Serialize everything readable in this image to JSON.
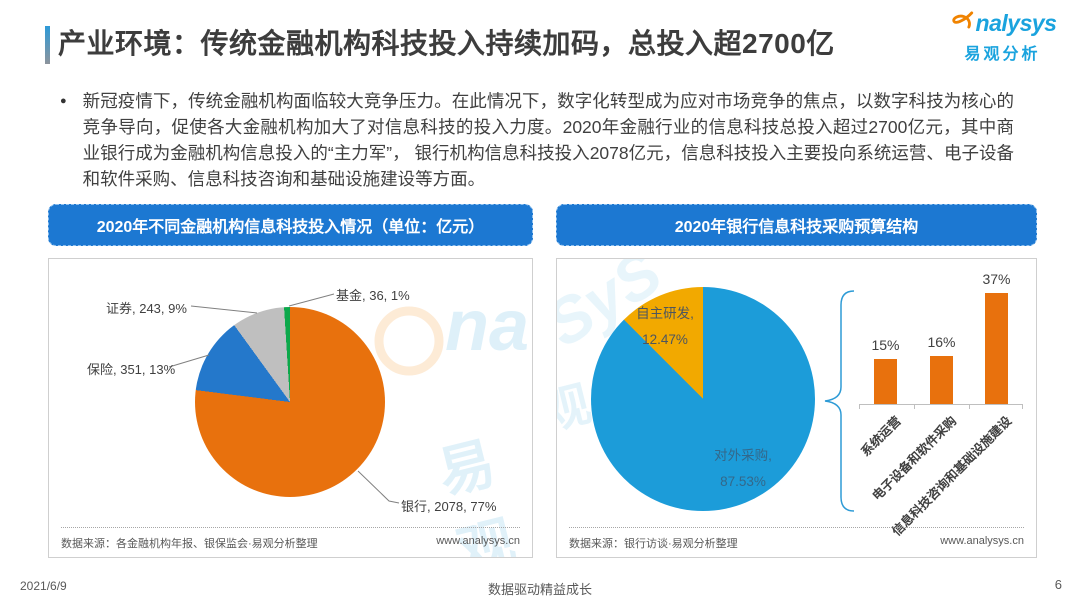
{
  "page": {
    "title": "产业环境：传统金融机构科技投入持续加码，总投入超2700亿",
    "logo": {
      "brand_rest": "nalysys",
      "brand_cn": "易观分析"
    },
    "bullet": "●",
    "bullet_text": "新冠疫情下，传统金融机构面临较大竞争压力。在此情况下，数字化转型成为应对市场竞争的焦点，以数字科技为核心的竞争导向，促使各大金融机构加大了对信息科技的投入力度。2020年金融行业的信息科技总投入超过2700亿元，其中商业银行成为金融机构信息投入的“主力军”， 银行机构信息科技投入2078亿元，信息科技投入主要投向系统运营、电子设备和软件采购、信息科技咨询和基础设施建设等方面。",
    "footer": {
      "date": "2021/6/9",
      "slogan": "数据驱动精益成长",
      "page_number": "6"
    }
  },
  "left_panel": {
    "header": "2020年不同金融机构信息科技投入情况（单位：亿元）",
    "source": "数据来源：各金融机构年报、银保监会·易观分析整理",
    "website": "www.analysys.cn"
  },
  "right_panel": {
    "header": "2020年银行信息科技采购预算结构",
    "source": "数据来源：银行访谈·易观分析整理",
    "website": "www.analysys.cn"
  },
  "watermarks": {
    "left_na": "na",
    "left_yiguan": "易观",
    "right_sys": "SyS",
    "right_guan": "观"
  },
  "chart_data": [
    {
      "type": "pie",
      "title": "2020年不同金融机构信息科技投入情况（单位：亿元）",
      "unit": "亿元",
      "start_angle_deg": 0,
      "direction": "clockwise",
      "slices": [
        {
          "label": "银行",
          "value": 2078,
          "pct": 77,
          "color": "#e8710d",
          "label_text": "银行, 2078, 77%"
        },
        {
          "label": "保险",
          "value": 351,
          "pct": 13,
          "color": "#2478cb",
          "label_text": "保险, 351, 13%"
        },
        {
          "label": "证券",
          "value": 243,
          "pct": 9,
          "color": "#bfbfbf",
          "label_text": "证券, 243, 9%"
        },
        {
          "label": "基金",
          "value": 36,
          "pct": 1,
          "color": "#0ca84b",
          "label_text": "基金, 36, 1%"
        }
      ]
    },
    {
      "type": "pie",
      "title": "2020年银行信息科技采购预算结构",
      "start_angle_deg": 0,
      "direction": "clockwise",
      "slices": [
        {
          "label": "对外采购",
          "pct": 87.53,
          "color": "#1c9cd9",
          "label_text": "对外采购,",
          "pct_text": "87.53%"
        },
        {
          "label": "自主研发",
          "pct": 12.47,
          "color": "#f2a900",
          "label_text": "自主研发,",
          "pct_text": "12.47%"
        }
      ]
    },
    {
      "type": "bar",
      "categories": [
        "系统运营",
        "电子设备和软件采购",
        "信息科技咨询和基础设施建设"
      ],
      "values": [
        15,
        16,
        37
      ],
      "value_labels": [
        "15%",
        "16%",
        "37%"
      ],
      "bar_color": "#e8710d",
      "ylim": [
        0,
        40
      ],
      "grid": false,
      "legend": "none"
    }
  ]
}
